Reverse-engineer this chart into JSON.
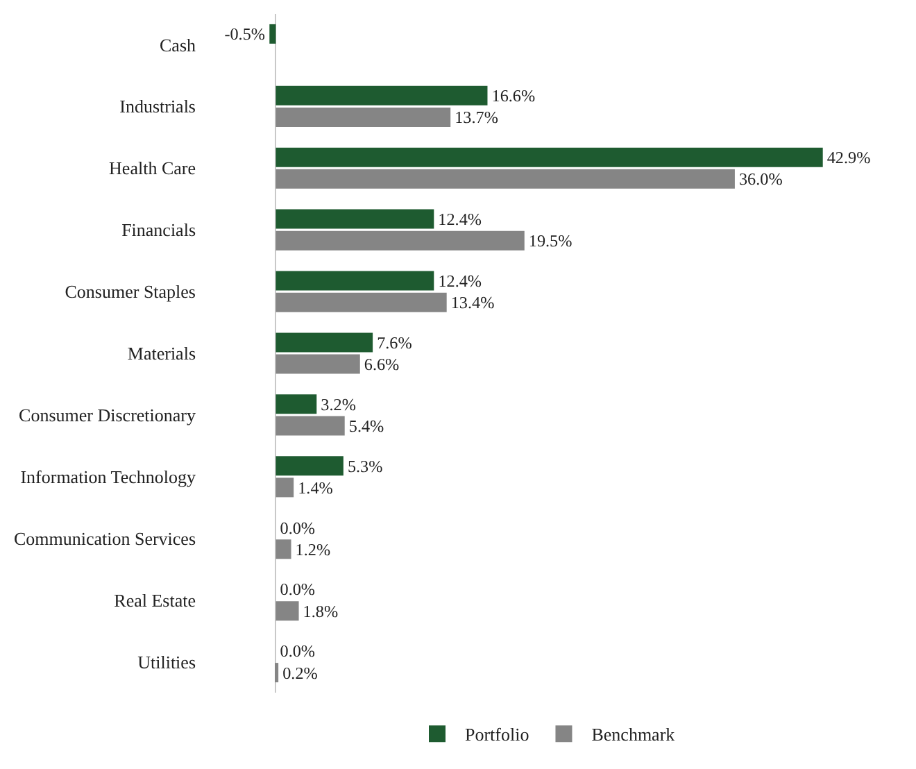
{
  "chart_data": {
    "type": "bar",
    "orientation": "horizontal",
    "categories": [
      "Cash",
      "Industrials",
      "Health Care",
      "Financials",
      "Consumer Staples",
      "Materials",
      "Consumer Discretionary",
      "Information Technology",
      "Communication Services",
      "Real Estate",
      "Utilities"
    ],
    "series": [
      {
        "name": "Portfolio",
        "color": "#1e5b30",
        "values": [
          -0.5,
          16.6,
          42.9,
          12.4,
          12.4,
          7.6,
          3.2,
          5.3,
          0.0,
          0.0,
          0.0
        ],
        "value_labels": [
          "-0.5%",
          "16.6%",
          "42.9%",
          "12.4%",
          "12.4%",
          "7.6%",
          "3.2%",
          "5.3%",
          "0.0%",
          "0.0%",
          "0.0%"
        ]
      },
      {
        "name": "Benchmark",
        "color": "#858585",
        "values": [
          null,
          13.7,
          36.0,
          19.5,
          13.4,
          6.6,
          5.4,
          1.4,
          1.2,
          1.8,
          0.2
        ],
        "value_labels": [
          null,
          "13.7%",
          "36.0%",
          "19.5%",
          "13.4%",
          "6.6%",
          "5.4%",
          "1.4%",
          "1.2%",
          "1.8%",
          "0.2%"
        ]
      }
    ],
    "legend": "bottom",
    "grid": false
  }
}
